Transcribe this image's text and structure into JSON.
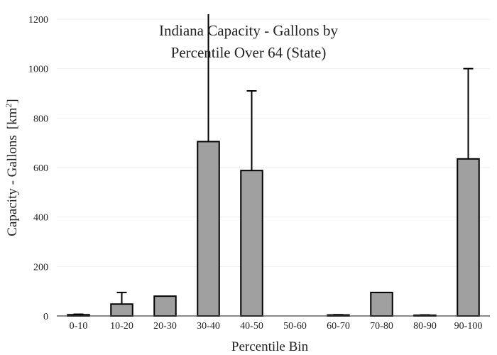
{
  "chart_data": {
    "type": "bar",
    "title_lines": [
      "Indiana Capacity - Gallons by",
      "Percentile Over 64 (State)"
    ],
    "xlabel": "Percentile Bin",
    "ylabel": "Capacity - Gallons",
    "ylabel_unit": "km",
    "ylabel_unit_sup": "2",
    "categories": [
      "0-10",
      "10-20",
      "20-30",
      "30-40",
      "40-50",
      "50-60",
      "60-70",
      "70-80",
      "80-90",
      "90-100"
    ],
    "values": [
      5,
      48,
      80,
      705,
      588,
      0,
      4,
      95,
      3,
      635
    ],
    "error_upper": [
      7,
      95,
      80,
      1220,
      910,
      0,
      5,
      95,
      4,
      1000
    ],
    "ylim": [
      0,
      1200
    ],
    "yticks": [
      0,
      200,
      400,
      600,
      800,
      1000,
      1200
    ],
    "bar_color": "#a0a0a0",
    "grid": true,
    "legend": "none"
  }
}
